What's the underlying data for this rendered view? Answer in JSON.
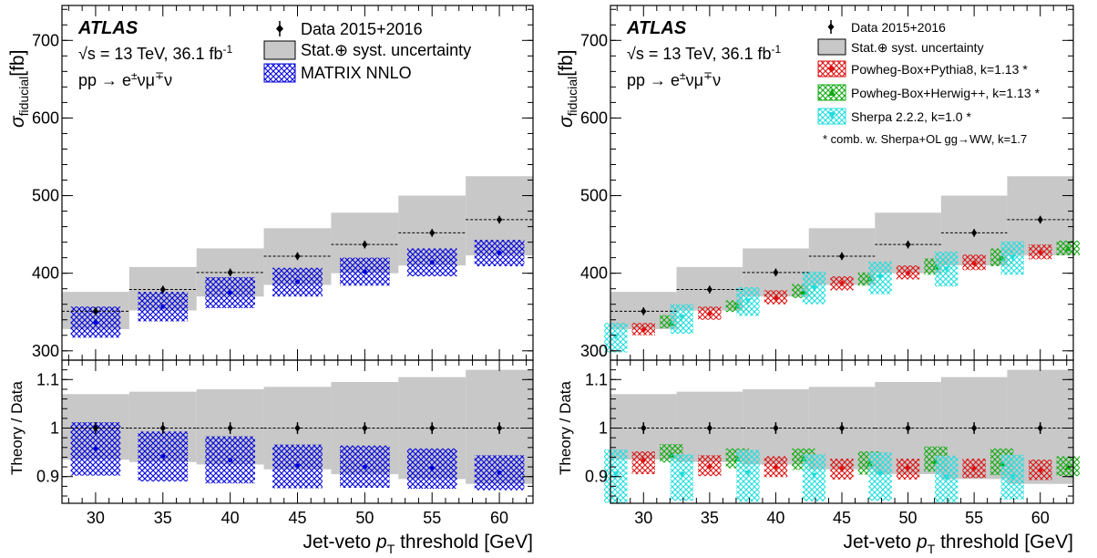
{
  "colors": {
    "band": "#c8c8c8",
    "matrix": "#0000dd",
    "pythia": "#dd1111",
    "herwig": "#11aa11",
    "sherpa": "#22dddd",
    "data": "#000000"
  },
  "common": {
    "experiment": "ATLAS",
    "energy": "√s = 13 TeV, 36.1 fb",
    "energy_sup": "-1",
    "process": "pp → e",
    "process_sup": "±",
    "process_mid": "νμ",
    "process_sup2": "∓",
    "process_end": "ν",
    "ylabel_top": "σ",
    "ylabel_top_sub": "fiducial",
    "ylabel_top_unit": "[fb]",
    "ylabel_ratio": "Theory / Data",
    "xlabel_pre": "Jet-veto ",
    "xlabel_p": "p",
    "xlabel_sub": "T",
    "xlabel_post": " threshold [GeV]"
  },
  "legend_left": [
    {
      "key": "data",
      "label": "Data 2015+2016"
    },
    {
      "key": "band",
      "label": "Stat.⊕ syst. uncertainty"
    },
    {
      "key": "matrix",
      "label": "MATRIX NNLO"
    }
  ],
  "legend_right": [
    {
      "key": "data",
      "label": "Data 2015+2016"
    },
    {
      "key": "band",
      "label": "Stat.⊕ syst. uncertainty"
    },
    {
      "key": "pythia",
      "label": "Powheg-Box+Pythia8, k=1.13 *"
    },
    {
      "key": "herwig",
      "label": "Powheg-Box+Herwig++, k=1.13 *"
    },
    {
      "key": "sherpa",
      "label": "Sherpa 2.2.2, k=1.0 *"
    }
  ],
  "legend_right_note": "* comb. w. Sherpa+OL gg→WW, k=1.7",
  "chart_data": {
    "type": "scatter",
    "x": [
      30,
      35,
      40,
      45,
      50,
      55,
      60
    ],
    "xlim": [
      27.5,
      62.5
    ],
    "xticks": [
      30,
      35,
      40,
      45,
      50,
      55,
      60
    ],
    "ylim_top": [
      288,
      745
    ],
    "yticks_top": [
      300,
      400,
      500,
      600,
      700
    ],
    "ylim_ratio": [
      0.845,
      1.14
    ],
    "yticks_ratio": [
      0.9,
      1,
      1.1
    ],
    "data": [
      351,
      379,
      401,
      422,
      437,
      452,
      469
    ],
    "data_err": [
      5,
      5,
      5,
      5,
      5,
      5,
      5
    ],
    "uncertainty": [
      [
        328,
        376
      ],
      [
        352,
        408
      ],
      [
        370,
        432
      ],
      [
        385,
        458
      ],
      [
        400,
        478
      ],
      [
        410,
        500
      ],
      [
        423,
        525
      ]
    ],
    "ratio_uncertainty": [
      [
        0.935,
        1.07
      ],
      [
        0.93,
        1.075
      ],
      [
        0.925,
        1.08
      ],
      [
        0.915,
        1.085
      ],
      [
        0.905,
        1.095
      ],
      [
        0.895,
        1.105
      ],
      [
        0.885,
        1.12
      ]
    ],
    "predictions": {
      "matrix": {
        "name": "MATRIX NNLO",
        "values": [
          337,
          357,
          375,
          389,
          402,
          414,
          426
        ],
        "band": [
          [
            317,
            357
          ],
          [
            338,
            376
          ],
          [
            355,
            395
          ],
          [
            370,
            407
          ],
          [
            384,
            420
          ],
          [
            396,
            432
          ],
          [
            409,
            443
          ]
        ],
        "ratio": [
          0.957,
          0.942,
          0.934,
          0.922,
          0.92,
          0.917,
          0.908
        ],
        "ratio_band": [
          [
            0.902,
            1.012
          ],
          [
            0.89,
            0.993
          ],
          [
            0.886,
            0.983
          ],
          [
            0.876,
            0.966
          ],
          [
            0.877,
            0.964
          ],
          [
            0.875,
            0.958
          ],
          [
            0.872,
            0.944
          ]
        ]
      },
      "sherpa": {
        "name": "Sherpa 2.2.2, k=1.0 *",
        "values": [
          318,
          343,
          364,
          381,
          395,
          405,
          420
        ],
        "band": [
          [
            298,
            336
          ],
          [
            322,
            360
          ],
          [
            345,
            382
          ],
          [
            360,
            402
          ],
          [
            373,
            415
          ],
          [
            383,
            428
          ],
          [
            398,
            441
          ]
        ],
        "ratio": [
          0.905,
          0.904,
          0.907,
          0.902,
          0.906,
          0.898,
          0.899
        ],
        "ratio_band": [
          [
            0.846,
            0.956
          ],
          [
            0.85,
            0.946
          ],
          [
            0.848,
            0.955
          ],
          [
            0.849,
            0.946
          ],
          [
            0.85,
            0.95
          ],
          [
            0.847,
            0.943
          ],
          [
            0.853,
            0.945
          ]
        ]
      },
      "pythia": {
        "name": "Powheg-Box+Pythia8, k=1.13 *",
        "values": [
          327,
          348,
          368,
          387,
          400,
          413,
          427
        ],
        "band": [
          [
            320,
            336
          ],
          [
            340,
            357
          ],
          [
            360,
            378
          ],
          [
            378,
            396
          ],
          [
            392,
            410
          ],
          [
            404,
            424
          ],
          [
            418,
            437
          ]
        ],
        "ratio": [
          0.934,
          0.921,
          0.92,
          0.916,
          0.918,
          0.917,
          0.913
        ],
        "ratio_band": [
          [
            0.905,
            0.952
          ],
          [
            0.901,
            0.944
          ],
          [
            0.899,
            0.942
          ],
          [
            0.894,
            0.937
          ],
          [
            0.894,
            0.937
          ],
          [
            0.897,
            0.937
          ],
          [
            0.893,
            0.935
          ]
        ]
      },
      "herwig": {
        "name": "Powheg-Box+Herwig++, k=1.13 *",
        "values": [
          336,
          358,
          376,
          393,
          408,
          420,
          432
        ],
        "band": [
          [
            329,
            346
          ],
          [
            350,
            365
          ],
          [
            368,
            386
          ],
          [
            384,
            401
          ],
          [
            398,
            419
          ],
          [
            409,
            432
          ],
          [
            423,
            442
          ]
        ],
        "ratio": [
          0.945,
          0.937,
          0.937,
          0.927,
          0.932,
          0.927,
          0.92
        ],
        "ratio_band": [
          [
            0.929,
            0.967
          ],
          [
            0.917,
            0.958
          ],
          [
            0.914,
            0.958
          ],
          [
            0.904,
            0.952
          ],
          [
            0.91,
            0.962
          ],
          [
            0.903,
            0.958
          ],
          [
            0.901,
            0.942
          ]
        ]
      }
    },
    "xlabel": "Jet-veto pT threshold [GeV]",
    "ylabel": "σfiducial[fb]",
    "ratio_ylabel": "Theory / Data",
    "legend_placement": "top-right"
  }
}
